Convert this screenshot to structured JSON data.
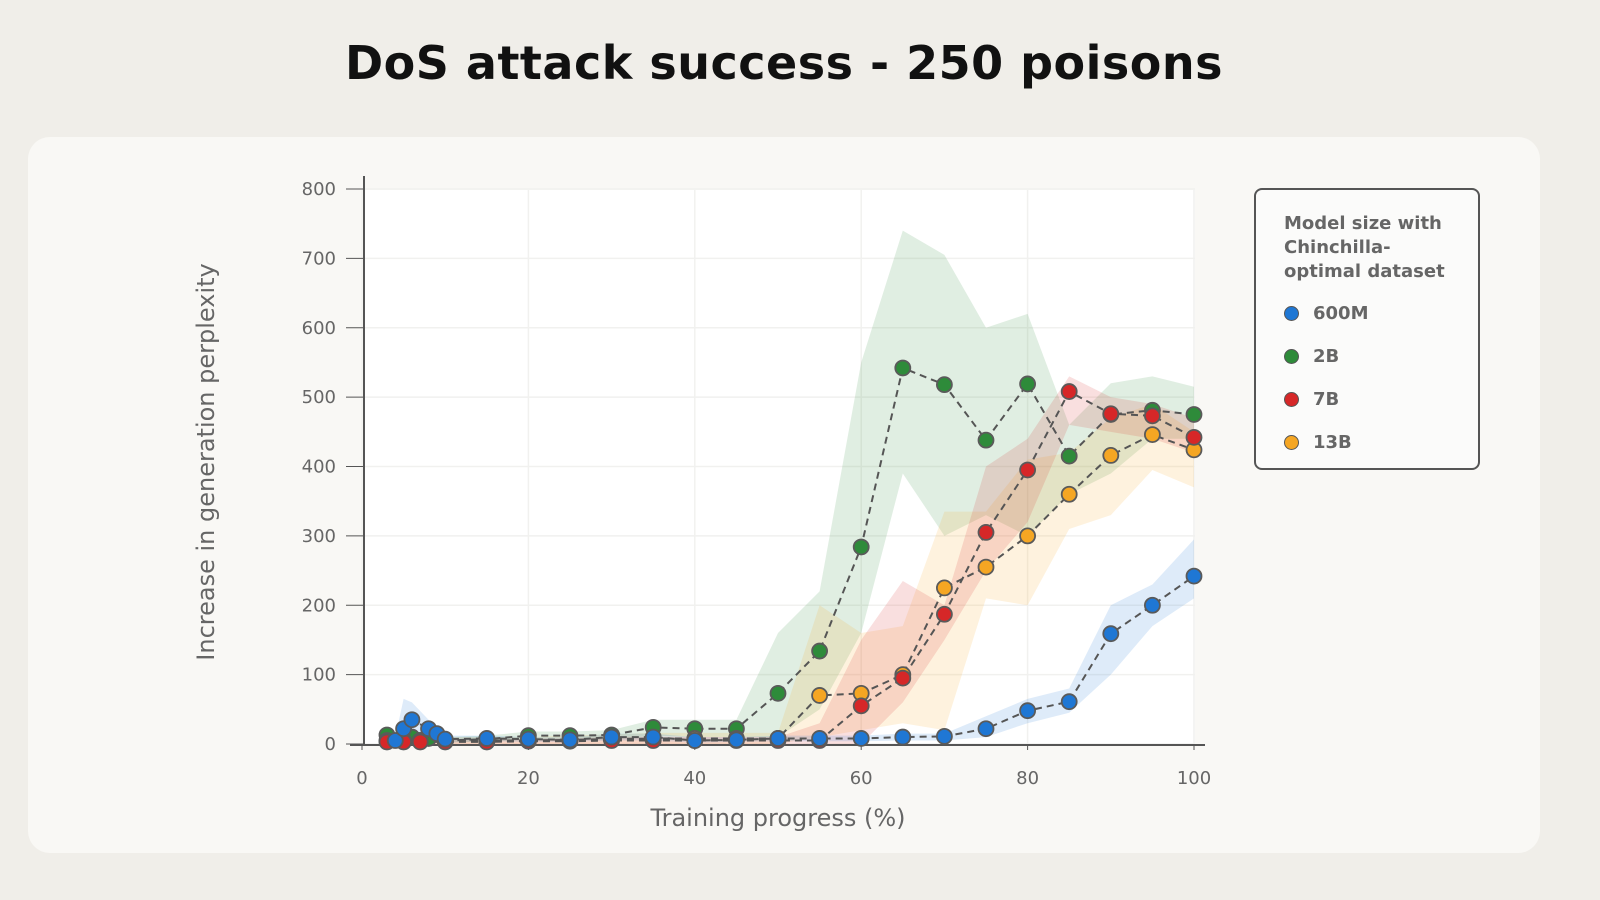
{
  "chart_data": {
    "type": "line",
    "title": "DoS attack success - 250 poisons",
    "xlabel": "Training progress (%)",
    "ylabel": "Increase in generation perplexity",
    "xlim": [
      0,
      100
    ],
    "ylim": [
      0,
      800
    ],
    "xticks": [
      "0",
      "20",
      "40",
      "60",
      "80",
      "100"
    ],
    "yticks": [
      "0",
      "100",
      "200",
      "300",
      "400",
      "500",
      "600",
      "700",
      "800"
    ],
    "grid": true,
    "legend": {
      "title": "Model size with Chinchilla-optimal dataset",
      "placement": "right"
    },
    "series": [
      {
        "name": "600M",
        "color": "#1f77d4",
        "x": [
          4,
          5,
          6,
          8,
          9,
          10,
          15,
          20,
          25,
          30,
          35,
          40,
          45,
          50,
          55,
          60,
          65,
          70,
          75,
          80,
          85,
          90,
          95,
          100
        ],
        "y": [
          5,
          22,
          35,
          22,
          15,
          7,
          8,
          7,
          6,
          10,
          10,
          5,
          6,
          8,
          8,
          8,
          10,
          11,
          22,
          48,
          61,
          159,
          200,
          242
        ],
        "lower": [
          0,
          5,
          10,
          10,
          5,
          2,
          4,
          3,
          3,
          5,
          5,
          2,
          3,
          4,
          4,
          4,
          5,
          5,
          10,
          30,
          45,
          100,
          170,
          210
        ],
        "upper": [
          10,
          65,
          60,
          35,
          25,
          12,
          12,
          10,
          10,
          15,
          15,
          10,
          10,
          12,
          12,
          12,
          15,
          15,
          40,
          65,
          80,
          200,
          230,
          295
        ]
      },
      {
        "name": "2B",
        "color": "#2e8b3a",
        "x": [
          3,
          5,
          6,
          7,
          8,
          10,
          15,
          20,
          25,
          30,
          35,
          40,
          45,
          50,
          55,
          60,
          65,
          70,
          75,
          80,
          85,
          90,
          95,
          100
        ],
        "y": [
          13,
          8,
          10,
          5,
          8,
          5,
          7,
          12,
          12,
          13,
          24,
          22,
          22,
          73,
          134,
          284,
          542,
          518,
          438,
          519,
          415,
          475,
          481,
          475
        ],
        "lower": [
          5,
          3,
          5,
          2,
          3,
          2,
          3,
          6,
          6,
          6,
          12,
          10,
          10,
          10,
          50,
          160,
          390,
          300,
          330,
          300,
          360,
          390,
          440,
          440
        ],
        "upper": [
          20,
          15,
          20,
          10,
          15,
          10,
          12,
          18,
          18,
          20,
          35,
          35,
          35,
          160,
          220,
          550,
          740,
          705,
          600,
          620,
          460,
          520,
          530,
          515
        ]
      },
      {
        "name": "7B",
        "color": "#d62728",
        "x": [
          3,
          5,
          7,
          10,
          15,
          20,
          25,
          30,
          35,
          40,
          45,
          50,
          55,
          60,
          65,
          70,
          75,
          80,
          85,
          90,
          95,
          100
        ],
        "y": [
          3,
          3,
          3,
          3,
          3,
          4,
          4,
          5,
          5,
          5,
          5,
          5,
          5,
          55,
          95,
          187,
          305,
          395,
          508,
          476,
          473,
          442
        ],
        "lower": [
          0,
          0,
          0,
          0,
          0,
          0,
          0,
          0,
          0,
          0,
          0,
          0,
          0,
          0,
          60,
          150,
          250,
          320,
          460,
          450,
          440,
          420
        ],
        "upper": [
          6,
          6,
          6,
          6,
          6,
          8,
          8,
          10,
          10,
          10,
          10,
          10,
          30,
          150,
          235,
          200,
          400,
          440,
          530,
          500,
          490,
          470
        ]
      },
      {
        "name": "13B",
        "color": "#f5a623",
        "x": [
          3,
          5,
          7,
          10,
          15,
          20,
          25,
          30,
          35,
          40,
          45,
          50,
          55,
          60,
          65,
          70,
          75,
          80,
          85,
          90,
          95,
          100
        ],
        "y": [
          5,
          5,
          5,
          5,
          5,
          5,
          6,
          7,
          8,
          8,
          8,
          8,
          70,
          73,
          100,
          225,
          255,
          300,
          360,
          416,
          446,
          424
        ],
        "lower": [
          0,
          0,
          0,
          0,
          0,
          0,
          0,
          0,
          0,
          0,
          0,
          0,
          10,
          20,
          30,
          20,
          210,
          200,
          310,
          330,
          395,
          370
        ],
        "upper": [
          10,
          10,
          10,
          10,
          10,
          10,
          12,
          14,
          16,
          16,
          16,
          16,
          200,
          160,
          170,
          335,
          335,
          410,
          420,
          470,
          490,
          450
        ]
      }
    ]
  }
}
